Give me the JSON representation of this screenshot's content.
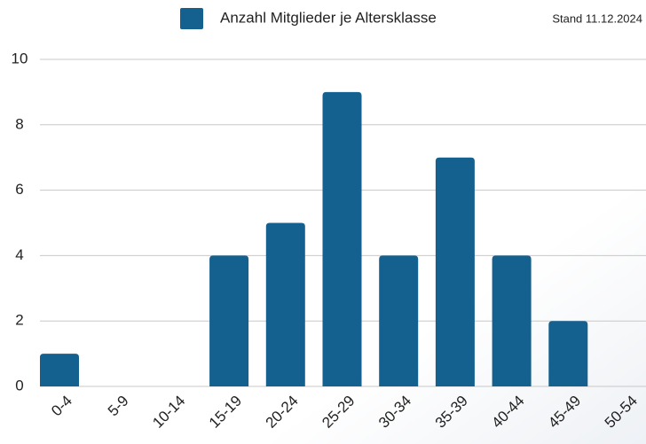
{
  "chart_data": {
    "type": "bar",
    "legend": "Anzahl Mitglieder je Altersklasse",
    "annotation": "Stand 11.12.2024",
    "categories": [
      "0-4",
      "5-9",
      "10-14",
      "15-19",
      "20-24",
      "25-29",
      "30-34",
      "35-39",
      "40-44",
      "45-49",
      "50-54"
    ],
    "values": [
      1,
      0,
      0,
      4,
      5,
      9,
      4,
      7,
      4,
      2,
      0
    ],
    "color": "#14608f",
    "ylim": [
      0,
      10
    ],
    "yticks": [
      0,
      2,
      4,
      6,
      8,
      10
    ],
    "grid": true
  }
}
